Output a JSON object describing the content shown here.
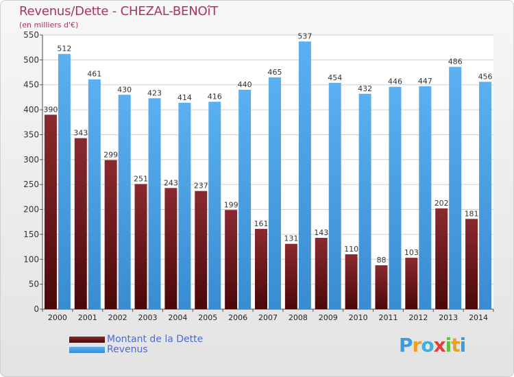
{
  "chart_data": {
    "type": "bar",
    "title": "Revenus/Dette - CHEZAL-BENOîT",
    "subtitle": "(en milliers d'€)",
    "categories": [
      "2000",
      "2001",
      "2002",
      "2003",
      "2004",
      "2005",
      "2006",
      "2007",
      "2008",
      "2009",
      "2010",
      "2011",
      "2012",
      "2013",
      "2014"
    ],
    "series": [
      {
        "name": "Montant de la Dette",
        "color": "#7a1e24",
        "values": [
          390,
          343,
          299,
          251,
          243,
          237,
          199,
          161,
          131,
          143,
          110,
          88,
          103,
          202,
          181
        ]
      },
      {
        "name": "Revenus",
        "color": "#4ba3e8",
        "values": [
          512,
          461,
          430,
          423,
          414,
          416,
          440,
          465,
          537,
          454,
          432,
          446,
          447,
          486,
          456
        ]
      }
    ],
    "ylim": [
      0,
      550
    ],
    "yticks": [
      0,
      50,
      100,
      150,
      200,
      250,
      300,
      350,
      400,
      450,
      500,
      550
    ],
    "grid": true,
    "legend": "bottom-left"
  },
  "logo": {
    "letters": [
      "P",
      "r",
      "o",
      "x",
      "i",
      "t",
      "i"
    ],
    "colors": [
      "#3d9be0",
      "#f0a020",
      "#3db0e0",
      "#e04040",
      "#60c040",
      "#f0a020",
      "#3d9be0"
    ]
  }
}
